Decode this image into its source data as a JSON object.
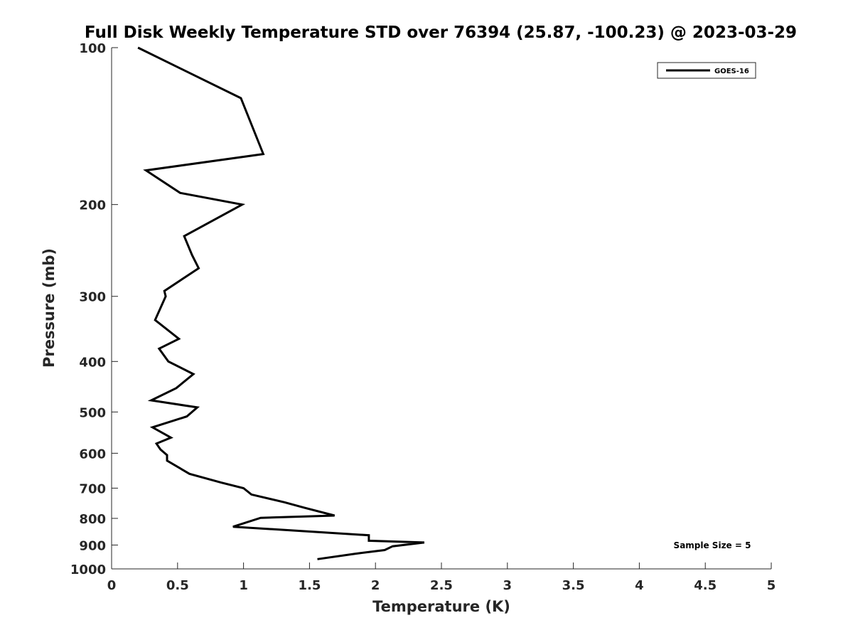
{
  "chart_data": {
    "type": "line",
    "title": "Full Disk Weekly Temperature STD over 76394 (25.87, -100.23) @ 2023-03-29",
    "xlabel": "Temperature (K)",
    "ylabel": "Pressure (mb)",
    "xlim": [
      0,
      5
    ],
    "ylim": [
      100,
      1000
    ],
    "yscale": "log",
    "yreversed": true,
    "xticks": [
      "0",
      "0.5",
      "1",
      "1.5",
      "2",
      "2.5",
      "3",
      "3.5",
      "4",
      "4.5",
      "5"
    ],
    "yticks": [
      "100",
      "200",
      "300",
      "400",
      "500",
      "600",
      "700",
      "800",
      "900",
      "1000"
    ],
    "grid": false,
    "legend_position": "top-right",
    "series": [
      {
        "name": "GOES-16",
        "color": "#000000",
        "x": [
          0.2,
          0.98,
          1.15,
          0.26,
          0.52,
          0.99,
          0.55,
          0.61,
          0.66,
          0.4,
          0.41,
          0.33,
          0.51,
          0.36,
          0.43,
          0.62,
          0.49,
          0.3,
          0.65,
          0.57,
          0.31,
          0.45,
          0.34,
          0.37,
          0.42,
          0.42,
          0.59,
          0.83,
          1.0,
          1.06,
          1.31,
          1.46,
          1.69,
          1.13,
          0.92,
          1.95,
          1.95,
          2.37,
          2.13,
          2.07,
          1.85,
          1.56
        ],
        "y": [
          100,
          125,
          160,
          172,
          190,
          200,
          230,
          250,
          265,
          293,
          300,
          333,
          362,
          378,
          400,
          423,
          450,
          475,
          490,
          510,
          535,
          560,
          575,
          590,
          605,
          620,
          657,
          683,
          700,
          720,
          745,
          763,
          790,
          798,
          830,
          862,
          883,
          890,
          905,
          920,
          935,
          958
        ]
      }
    ],
    "annotations": [
      "Sample Size = 5"
    ]
  }
}
